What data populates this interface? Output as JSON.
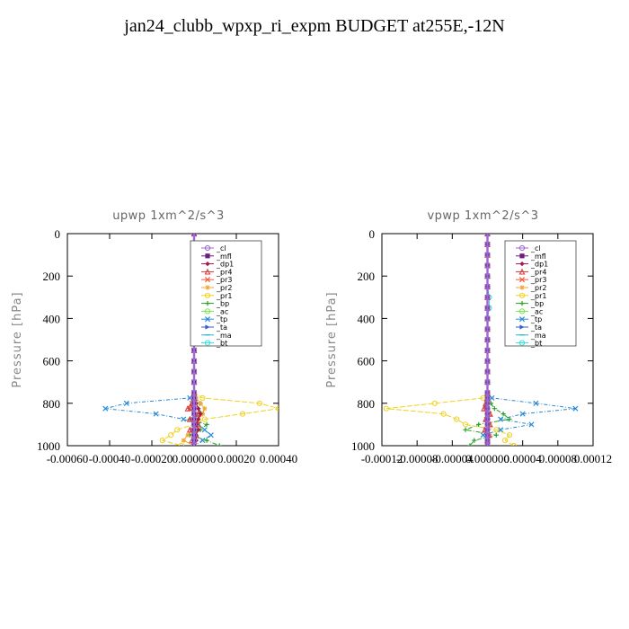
{
  "title": "jan24_clubb_wpxp_ri_expm  BUDGET at255E,-12N",
  "series_legend": [
    {
      "name": "_cl",
      "color": "#9a6ad6",
      "marker": "circle"
    },
    {
      "name": "_mfl",
      "color": "#6a1d7a",
      "marker": "square"
    },
    {
      "name": "_dp1",
      "color": "#a4184a",
      "marker": "diamond"
    },
    {
      "name": "_pr4",
      "color": "#d23a3a",
      "marker": "triangle"
    },
    {
      "name": "_pr3",
      "color": "#ef5c3a",
      "marker": "cross"
    },
    {
      "name": "_pr2",
      "color": "#f2a532",
      "marker": "star"
    },
    {
      "name": "_pr1",
      "color": "#f0d020",
      "marker": "circle"
    },
    {
      "name": "_bp",
      "color": "#2aa02a",
      "marker": "plus"
    },
    {
      "name": "_ac",
      "color": "#78e64a",
      "marker": "circle"
    },
    {
      "name": "_tp",
      "color": "#2a8ad6",
      "marker": "x"
    },
    {
      "name": "_ta",
      "color": "#3a5ad6",
      "marker": "arrow"
    },
    {
      "name": "_ma",
      "color": "#2ab0c8",
      "marker": "dash"
    },
    {
      "name": "_bt",
      "color": "#30e0e0",
      "marker": "circle"
    }
  ],
  "chart_data": [
    {
      "type": "line",
      "title": "upwp   1xm^2/s^3",
      "ylabel": "Pressure [hPa]",
      "ylim": [
        1000,
        0
      ],
      "xlim": [
        -0.0006,
        0.0004
      ],
      "y_ticks": [
        "0",
        "200",
        "400",
        "600",
        "800",
        "1000"
      ],
      "x_ticks": [
        "-0.00060",
        "-0.00040",
        "-0.00020",
        "0.000000",
        "0.00020",
        "0.00040"
      ],
      "x_tick_values": [
        -0.0006,
        -0.0004,
        -0.0002,
        0.0,
        0.0002,
        0.0004
      ],
      "y": [
        0,
        50,
        100,
        150,
        200,
        250,
        300,
        350,
        400,
        450,
        500,
        550,
        600,
        650,
        700,
        750,
        775,
        800,
        825,
        850,
        875,
        900,
        925,
        950,
        975,
        1000
      ],
      "series": [
        {
          "name": "_cl",
          "values": [
            0,
            0,
            0,
            0,
            0,
            0,
            0,
            0,
            0,
            0,
            0,
            0,
            0,
            0,
            0,
            0,
            0,
            0,
            0,
            0,
            0,
            0,
            0,
            0,
            0,
            0
          ]
        },
        {
          "name": "_mfl",
          "values": [
            0,
            0,
            0,
            0,
            0,
            0,
            0,
            0,
            0,
            0,
            0,
            0,
            0,
            0,
            0,
            0,
            0,
            0,
            0,
            0,
            0,
            0,
            0,
            0,
            0,
            0
          ]
        },
        {
          "name": "_dp1",
          "values": [
            0,
            0,
            0,
            0,
            0,
            0,
            0,
            0,
            0,
            0,
            0,
            0,
            0,
            0,
            0,
            0,
            0,
            1e-05,
            2e-05,
            3e-05,
            2e-05,
            1e-05,
            2e-05,
            1e-05,
            1e-05,
            0
          ]
        },
        {
          "name": "_pr4",
          "values": [
            0,
            0,
            0,
            0,
            0,
            0,
            0,
            0,
            0,
            0,
            0,
            0,
            0,
            0,
            0,
            0,
            0,
            -1e-05,
            -3e-05,
            2e-05,
            -2e-05,
            2e-05,
            -2e-05,
            1e-05,
            -1e-05,
            0
          ]
        },
        {
          "name": "_pr3",
          "values": [
            0,
            0,
            0,
            0,
            0,
            0,
            0,
            0,
            0,
            0,
            0,
            0,
            0,
            0,
            0,
            0,
            0,
            -1e-05,
            -2e-05,
            1e-05,
            -1e-05,
            1e-05,
            -1e-05,
            0,
            0,
            0
          ]
        },
        {
          "name": "_pr2",
          "values": [
            0,
            0,
            0,
            0,
            0,
            0,
            0,
            0,
            0,
            0,
            0,
            0,
            0,
            0,
            0,
            0,
            1e-05,
            3e-05,
            5e-05,
            4e-05,
            2e-05,
            0,
            -1e-05,
            -3e-05,
            -5e-05,
            0
          ]
        },
        {
          "name": "_pr1",
          "values": [
            0,
            0,
            0,
            0,
            0,
            0,
            0,
            0,
            0,
            0,
            0,
            0,
            0,
            0,
            0,
            0,
            4e-05,
            0.00031,
            0.0004,
            0.00023,
            5e-05,
            0,
            -8e-05,
            -0.00011,
            -0.00015,
            -6e-05
          ]
        },
        {
          "name": "_bp",
          "values": [
            0,
            0,
            0,
            0,
            0,
            0,
            0,
            0,
            0,
            0,
            0,
            0,
            0,
            0,
            0,
            0,
            0,
            3e-05,
            2e-05,
            4e-05,
            -2e-05,
            6e-05,
            3e-05,
            -2e-05,
            6e-05,
            0.00012
          ]
        },
        {
          "name": "_ac",
          "values": [
            0,
            0,
            0,
            0,
            0,
            0,
            0,
            0,
            0,
            0,
            0,
            0,
            0,
            0,
            0,
            0,
            0,
            0,
            0,
            0,
            0,
            0,
            0,
            0,
            0,
            0
          ]
        },
        {
          "name": "_tp",
          "values": [
            0,
            0,
            0,
            0,
            0,
            0,
            0,
            0,
            0,
            0,
            0,
            0,
            0,
            0,
            0,
            0,
            -2e-05,
            -0.00032,
            -0.00042,
            -0.00018,
            -5e-05,
            2e-05,
            5e-05,
            8e-05,
            4e-05,
            0
          ]
        },
        {
          "name": "_ta",
          "values": [
            0,
            0,
            0,
            0,
            0,
            0,
            0,
            0,
            0,
            0,
            0,
            0,
            0,
            0,
            0,
            0,
            0,
            0,
            1e-05,
            0,
            0,
            0,
            0,
            1e-05,
            0,
            0
          ]
        },
        {
          "name": "_ma",
          "values": [
            0,
            0,
            0,
            0,
            0,
            0,
            0,
            0,
            0,
            0,
            0,
            0,
            0,
            0,
            0,
            0,
            0,
            0,
            0,
            0,
            0,
            0,
            0,
            0,
            0,
            0
          ]
        },
        {
          "name": "_bt",
          "values": [
            0,
            0,
            0,
            0,
            0,
            0,
            0,
            0,
            0,
            0,
            0,
            0,
            0,
            0,
            0,
            0,
            0,
            0,
            0,
            0,
            0,
            0,
            0,
            0,
            0,
            0
          ]
        }
      ]
    },
    {
      "type": "line",
      "title": "vpwp   1xm^2/s^3",
      "ylabel": "Pressure [hPa]",
      "ylim": [
        1000,
        0
      ],
      "xlim": [
        -0.00012,
        0.00012
      ],
      "y_ticks": [
        "0",
        "200",
        "400",
        "600",
        "800",
        "1000"
      ],
      "x_ticks": [
        "-0.00012",
        "-0.00008",
        "-0.00004",
        "0.000000",
        "0.00004",
        "0.00008",
        "0.00012"
      ],
      "x_tick_values": [
        -0.00012,
        -8e-05,
        -4e-05,
        0.0,
        4e-05,
        8e-05,
        0.00012
      ],
      "y": [
        0,
        50,
        100,
        150,
        200,
        250,
        300,
        350,
        400,
        450,
        500,
        550,
        600,
        650,
        700,
        750,
        775,
        800,
        825,
        850,
        875,
        900,
        925,
        950,
        975,
        1000
      ],
      "series": [
        {
          "name": "_cl",
          "values": [
            0,
            0,
            0,
            0,
            0,
            0,
            0,
            0,
            0,
            0,
            0,
            0,
            0,
            0,
            0,
            0,
            0,
            0,
            0,
            0,
            0,
            0,
            0,
            0,
            0,
            0
          ]
        },
        {
          "name": "_mfl",
          "values": [
            0,
            0,
            0,
            0,
            0,
            0,
            0,
            0,
            0,
            0,
            0,
            0,
            0,
            0,
            0,
            0,
            0,
            0,
            0,
            0,
            0,
            0,
            0,
            0,
            0,
            0
          ]
        },
        {
          "name": "_dp1",
          "values": [
            0,
            0,
            0,
            0,
            0,
            0,
            0,
            0,
            0,
            0,
            0,
            0,
            0,
            0,
            0,
            0,
            0,
            0,
            0,
            0,
            0,
            0,
            0,
            0,
            0,
            0
          ]
        },
        {
          "name": "_pr4",
          "values": [
            0,
            0,
            0,
            0,
            0,
            0,
            0,
            0,
            0,
            0,
            0,
            0,
            0,
            0,
            0,
            0,
            0,
            -2e-06,
            -4e-06,
            3e-06,
            -2e-06,
            3e-06,
            -3e-06,
            2e-06,
            0,
            0
          ]
        },
        {
          "name": "_pr3",
          "values": [
            0,
            0,
            0,
            0,
            0,
            0,
            0,
            0,
            0,
            0,
            0,
            0,
            0,
            0,
            0,
            0,
            0,
            -1e-06,
            -2e-06,
            2e-06,
            -1e-06,
            2e-06,
            -2e-06,
            1e-06,
            0,
            0
          ]
        },
        {
          "name": "_pr2",
          "values": [
            0,
            0,
            0,
            0,
            0,
            0,
            0,
            0,
            0,
            0,
            0,
            0,
            0,
            0,
            0,
            0,
            0,
            0,
            0,
            0,
            0,
            0,
            0,
            0,
            0,
            0
          ]
        },
        {
          "name": "_pr1",
          "values": [
            0,
            0,
            0,
            0,
            0,
            0,
            0,
            0,
            0,
            0,
            0,
            0,
            0,
            0,
            0,
            0,
            -5e-06,
            -6e-05,
            -0.000115,
            -5e-05,
            -3.5e-05,
            -2.5e-05,
            1e-05,
            2.5e-05,
            2e-05,
            3e-05
          ]
        },
        {
          "name": "_bp",
          "values": [
            0,
            0,
            0,
            0,
            0,
            0,
            0,
            0,
            0,
            0,
            0,
            0,
            0,
            0,
            0,
            0,
            0,
            4e-06,
            8e-06,
            1.8e-05,
            2.5e-05,
            -1e-05,
            -2.5e-05,
            1e-05,
            -1.5e-05,
            -2e-05
          ]
        },
        {
          "name": "_ac",
          "values": [
            0,
            0,
            0,
            0,
            0,
            0,
            0,
            0,
            0,
            0,
            0,
            0,
            0,
            0,
            0,
            0,
            0,
            0,
            0,
            0,
            0,
            0,
            0,
            0,
            0,
            0
          ]
        },
        {
          "name": "_tp",
          "values": [
            0,
            0,
            0,
            0,
            0,
            0,
            0,
            0,
            0,
            0,
            0,
            0,
            0,
            0,
            0,
            0,
            5e-06,
            5.5e-05,
            0.0001,
            4e-05,
            1.5e-05,
            5e-05,
            1.5e-05,
            -5e-06,
            0,
            0
          ]
        },
        {
          "name": "_ta",
          "values": [
            0,
            0,
            0,
            0,
            0,
            0,
            0,
            0,
            0,
            0,
            0,
            0,
            0,
            0,
            0,
            0,
            0,
            0,
            0,
            0,
            0,
            0,
            0,
            0,
            0,
            0
          ]
        },
        {
          "name": "_ma",
          "values": [
            0,
            0,
            0,
            0,
            0,
            0,
            0,
            0,
            0,
            0,
            0,
            0,
            0,
            0,
            0,
            0,
            0,
            0,
            0,
            0,
            0,
            0,
            0,
            0,
            0,
            0
          ]
        },
        {
          "name": "_bt",
          "values": [
            0,
            0,
            0,
            0,
            0,
            0,
            2e-06,
            2e-06,
            0,
            0,
            0,
            0,
            0,
            0,
            0,
            0,
            0,
            0,
            0,
            0,
            0,
            0,
            0,
            0,
            0,
            0
          ]
        }
      ]
    }
  ]
}
